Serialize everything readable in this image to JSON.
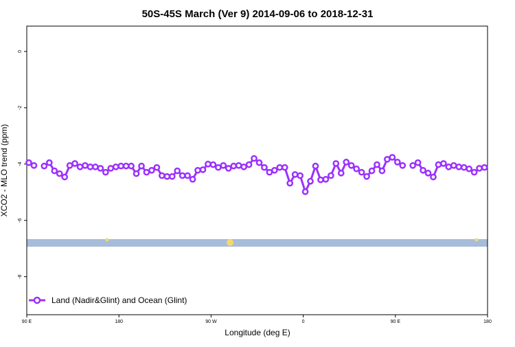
{
  "chart_data": {
    "type": "line",
    "title": "50S-45S March (Ver 9)   2014-09-06 to 2018-12-31",
    "x_label": "Longitude (deg E)",
    "y_label": "XCO2 - MLO trend (ppm)",
    "x": [
      92,
      97,
      102,
      107,
      112,
      117,
      122,
      127,
      132,
      137,
      142,
      147,
      152,
      157,
      162,
      167,
      172,
      177,
      182,
      187,
      192,
      197,
      202,
      207,
      212,
      217,
      222,
      227,
      232,
      237,
      242,
      247,
      252,
      257,
      262,
      267,
      272,
      277,
      282,
      287,
      292,
      297,
      302,
      307,
      312,
      317,
      322,
      327,
      332,
      337,
      342,
      347,
      352,
      357,
      362,
      367,
      372,
      377,
      382,
      387,
      392,
      397,
      402,
      407,
      412,
      417,
      422,
      427,
      432,
      437,
      442,
      447,
      452,
      457,
      462,
      467,
      472,
      477,
      482,
      487,
      492,
      497,
      502,
      507,
      512,
      517,
      522,
      527,
      532,
      537
    ],
    "series": [
      {
        "name": "Land (Nadir&Glint) and Ocean (Glint)",
        "color": "#9b30ff",
        "values": [
          -3.95,
          -4.05,
          null,
          -4.07,
          -3.95,
          -4.24,
          -4.34,
          -4.46,
          -4.05,
          -3.98,
          -4.1,
          -4.05,
          -4.1,
          -4.1,
          -4.15,
          -4.29,
          -4.15,
          -4.1,
          -4.07,
          -4.07,
          -4.07,
          -4.34,
          -4.07,
          -4.29,
          -4.22,
          -4.12,
          -4.41,
          -4.44,
          -4.44,
          -4.24,
          -4.41,
          -4.41,
          -4.54,
          -4.22,
          -4.2,
          -4.0,
          -4.02,
          -4.12,
          -4.05,
          -4.15,
          -4.07,
          -4.05,
          -4.1,
          -4.02,
          -3.8,
          -3.95,
          -4.12,
          -4.29,
          -4.22,
          -4.12,
          -4.12,
          -4.68,
          -4.37,
          -4.41,
          -4.98,
          -4.61,
          -4.07,
          -4.56,
          -4.54,
          -4.41,
          -3.98,
          -4.32,
          -3.93,
          -4.05,
          -4.17,
          -4.29,
          -4.44,
          -4.24,
          -4.02,
          -4.24,
          -3.83,
          -3.76,
          -3.93,
          -4.05,
          null,
          -4.05,
          -3.95,
          -4.22,
          -4.32,
          -4.46,
          -4.02,
          -3.98,
          -4.1,
          -4.05,
          -4.1,
          -4.12,
          -4.17,
          -4.29,
          -4.15,
          -4.12
        ]
      }
    ],
    "xlim": [
      90,
      540
    ],
    "xticks": [
      {
        "value": 90,
        "label": "90 E"
      },
      180,
      {
        "value": 270,
        "label": "90 W"
      },
      {
        "value": 360,
        "label": "0"
      },
      {
        "value": 450,
        "label": "90 E"
      },
      {
        "value": 540,
        "label": "180"
      }
    ],
    "ylim": [
      -9.35,
      0.9
    ],
    "yticks": [
      0,
      -2,
      -4,
      -6,
      -8
    ],
    "legend": "bottom-left"
  }
}
